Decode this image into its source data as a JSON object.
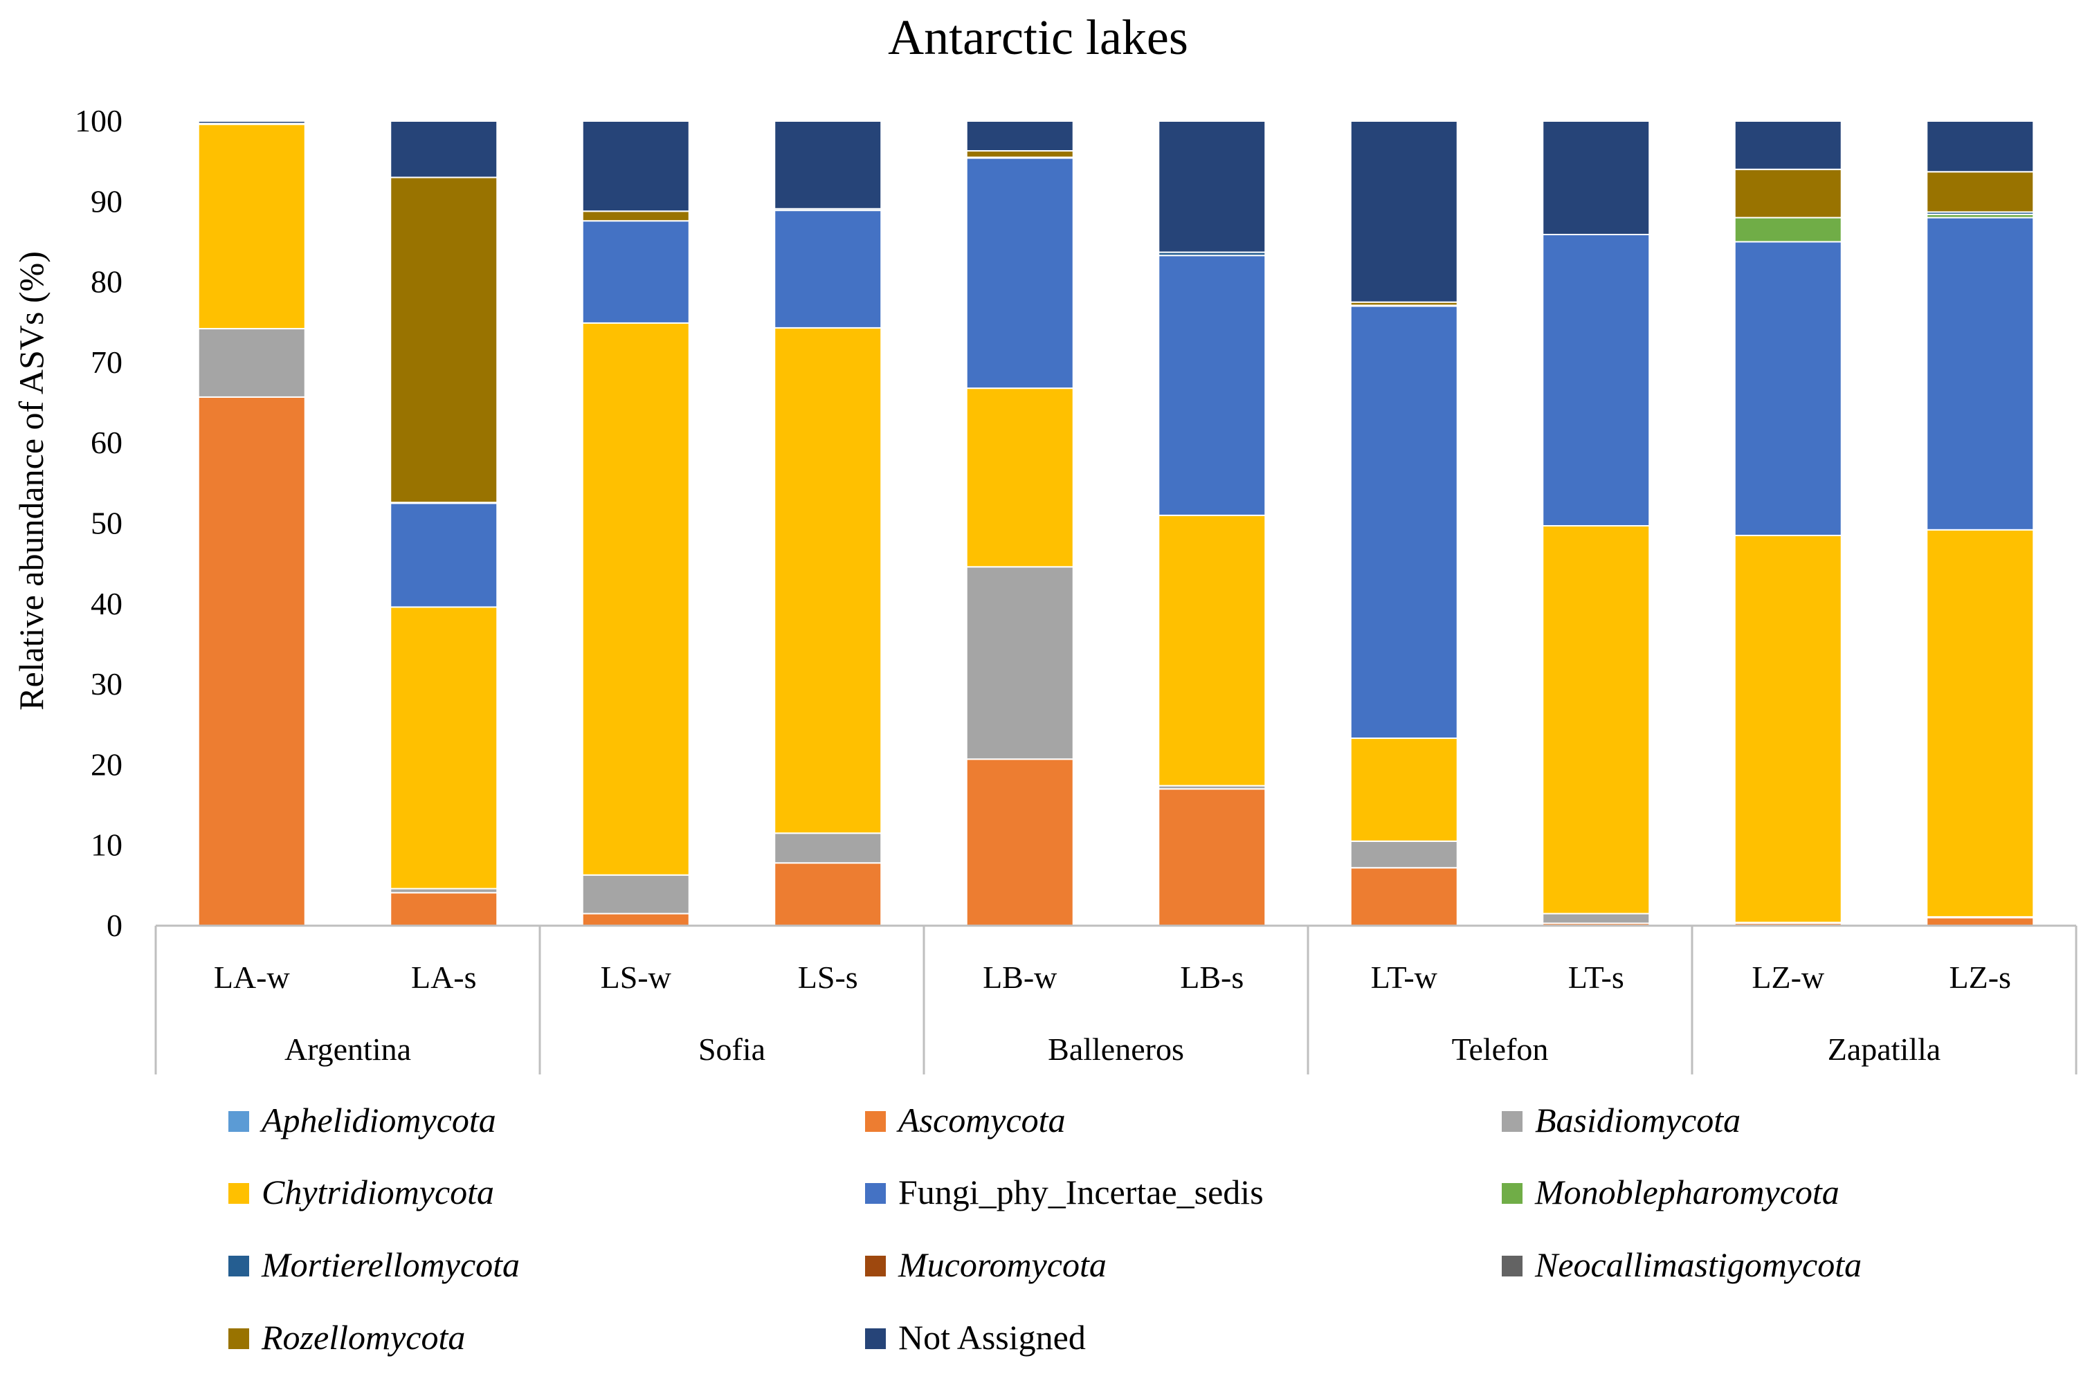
{
  "chart_data": {
    "type": "bar",
    "stacked": true,
    "title": "Antarctic lakes",
    "xlabel": "",
    "ylabel": "Relative abundance of ASVs (%)",
    "ylim": [
      0,
      100
    ],
    "yticks": [
      "0",
      "10",
      "20",
      "30",
      "40",
      "50",
      "60",
      "70",
      "80",
      "90",
      "100"
    ],
    "grid": false,
    "legend_position": "bottom",
    "categories": [
      "LA-w",
      "LA-s",
      "LS-w",
      "LS-s",
      "LB-w",
      "LB-s",
      "LT-w",
      "LT-s",
      "LZ-w",
      "LZ-s"
    ],
    "groups": [
      {
        "name": "Argentina",
        "members": [
          "LA-w",
          "LA-s"
        ]
      },
      {
        "name": "Sofia",
        "members": [
          "LS-w",
          "LS-s"
        ]
      },
      {
        "name": "Balleneros",
        "members": [
          "LB-w",
          "LB-s"
        ]
      },
      {
        "name": "Telefon",
        "members": [
          "LT-w",
          "LT-s"
        ]
      },
      {
        "name": "Zapatilla",
        "members": [
          "LZ-w",
          "LZ-s"
        ]
      }
    ],
    "series": [
      {
        "name": "Aphelidiomycota",
        "italic": true,
        "color": "#5B9BD5",
        "values": [
          0,
          0,
          0,
          0,
          0,
          0,
          0,
          0,
          0,
          0
        ]
      },
      {
        "name": "Ascomycota",
        "italic": true,
        "color": "#ED7D31",
        "values": [
          65.7,
          4.1,
          1.5,
          7.8,
          20.7,
          17.0,
          7.2,
          0.3,
          0.3,
          1.0
        ]
      },
      {
        "name": "Basidiomycota",
        "italic": true,
        "color": "#A5A5A5",
        "values": [
          8.5,
          0.5,
          4.8,
          3.7,
          23.9,
          0.4,
          3.3,
          1.2,
          0.1,
          0.1
        ]
      },
      {
        "name": "Chytridiomycota",
        "italic": true,
        "color": "#FFC000",
        "values": [
          25.4,
          35.0,
          68.6,
          62.8,
          22.2,
          33.6,
          12.8,
          48.2,
          48.1,
          48.1
        ]
      },
      {
        "name": "Fungi_phy_Incertae_sedis",
        "italic": false,
        "color": "#4472C4",
        "values": [
          0.1,
          12.9,
          12.7,
          14.6,
          28.6,
          32.3,
          53.7,
          36.2,
          36.5,
          38.8
        ]
      },
      {
        "name": "Monoblepharomycota",
        "italic": true,
        "color": "#70AD47",
        "values": [
          0,
          0,
          0,
          0,
          0,
          0,
          0,
          0,
          3.0,
          0.4
        ]
      },
      {
        "name": "Mortierellomycota",
        "italic": true,
        "color": "#255E91",
        "values": [
          0,
          0.1,
          0,
          0.2,
          0.1,
          0.4,
          0.1,
          0,
          0,
          0.3
        ]
      },
      {
        "name": "Mucoromycota",
        "italic": true,
        "color": "#9E480E",
        "values": [
          0,
          0,
          0,
          0,
          0,
          0,
          0,
          0,
          0,
          0
        ]
      },
      {
        "name": "Neocallimastigomycota",
        "italic": true,
        "color": "#636363",
        "values": [
          0,
          0,
          0,
          0,
          0,
          0,
          0,
          0,
          0,
          0
        ]
      },
      {
        "name": "Rozellomycota",
        "italic": true,
        "color": "#997300",
        "values": [
          0,
          40.4,
          1.2,
          0,
          0.8,
          0,
          0.4,
          0,
          6.0,
          5.0
        ]
      },
      {
        "name": "Not Assigned",
        "italic": false,
        "color": "#264478",
        "values": [
          0.3,
          7.0,
          11.2,
          10.9,
          3.7,
          16.3,
          22.5,
          14.1,
          6.0,
          6.3
        ]
      }
    ]
  }
}
